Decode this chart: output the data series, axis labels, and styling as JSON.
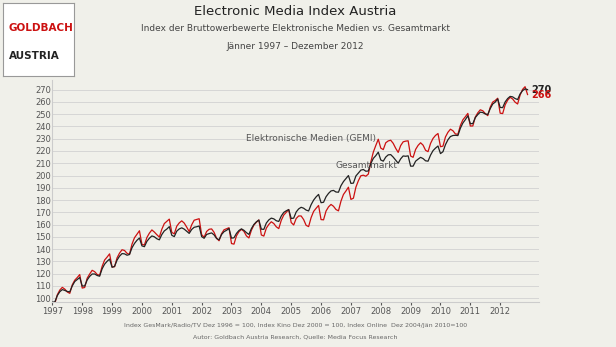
{
  "title": "Electronic Media Index Austria",
  "subtitle1": "Index der Bruttowerbewerte Elektronische Medien vs. Gesamtmarkt",
  "subtitle2": "Jänner 1997 – Dezember 2012",
  "footnote1": "Index GesMark/Radio/TV Dez 1996 = 100, Index Kino Dez 2000 = 100, Index Online  Dez 2004/Jän 2010=100",
  "footnote2": "Autor: Goldbach Austria Research, Quelle: Media Focus Research",
  "label_electronic": "Elektronische Medien (GEMI)",
  "label_total": "Gesamtmarkt",
  "end_label_electronic": "270",
  "end_label_total": "266",
  "ylim": [
    97,
    278
  ],
  "yticks": [
    100,
    110,
    120,
    130,
    140,
    150,
    160,
    170,
    180,
    190,
    200,
    210,
    220,
    230,
    240,
    250,
    260,
    270
  ],
  "color_electronic": "#222222",
  "color_total": "#cc1111",
  "logo_text1": "GOLDBACH",
  "logo_text2": "AUSTRIA",
  "background_color": "#f0f0ea",
  "grid_color": "#cccccc",
  "logo_box_color": "#ffffff"
}
